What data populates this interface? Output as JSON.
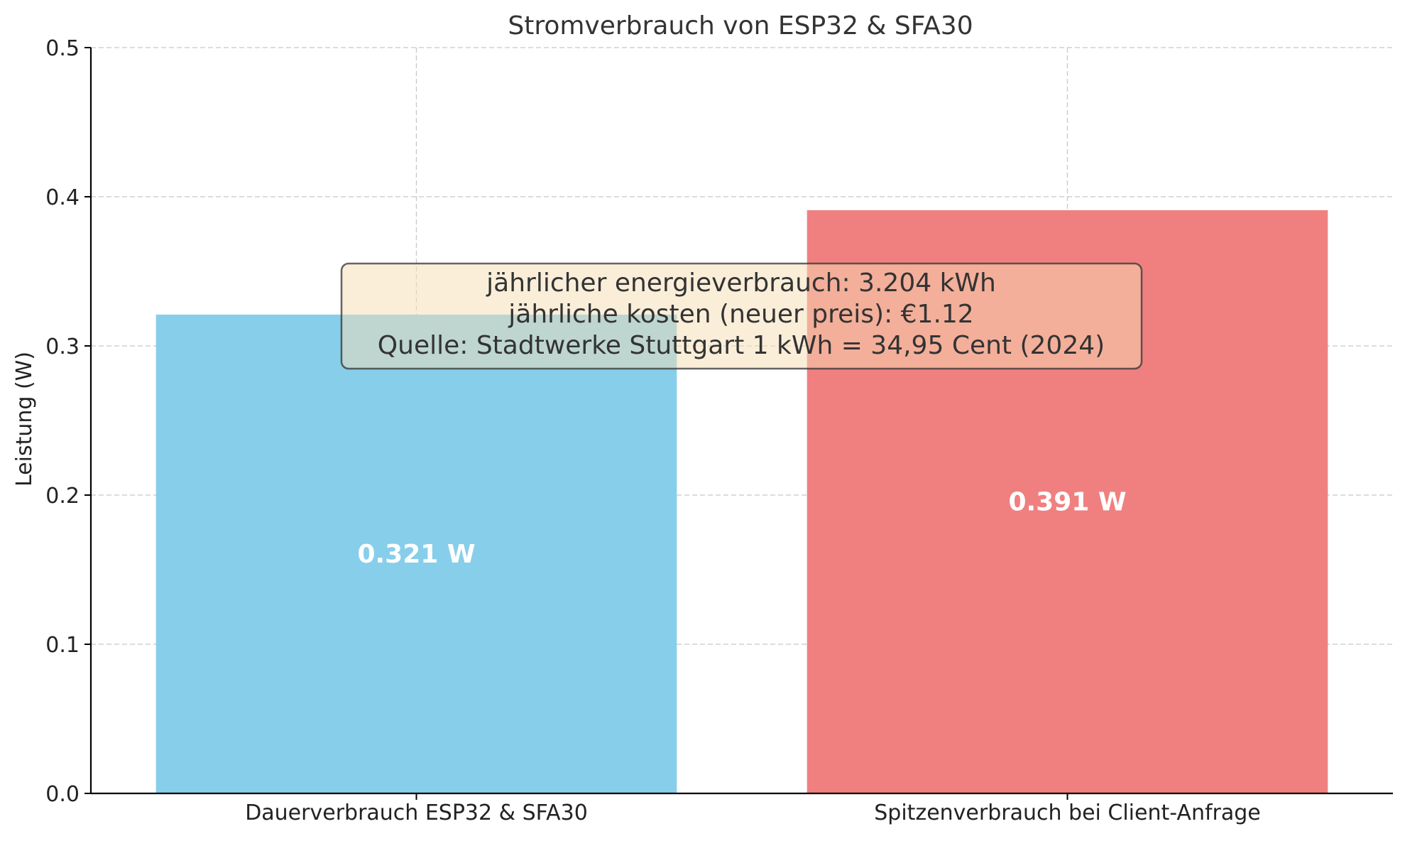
{
  "chart_data": {
    "type": "bar",
    "title": "Stromverbrauch von ESP32 & SFA30",
    "xlabel": "",
    "ylabel": "Leistung (W)",
    "ylim": [
      0,
      0.5
    ],
    "yticks": [
      0.0,
      0.1,
      0.2,
      0.3,
      0.4,
      0.5
    ],
    "ytick_labels": [
      "0.0",
      "0.1",
      "0.2",
      "0.3",
      "0.4",
      "0.5"
    ],
    "categories": [
      "Dauerverbrauch ESP32 & SFA30",
      "Spitzenverbrauch bei Client-Anfrage"
    ],
    "values": [
      0.321,
      0.391
    ],
    "value_labels": [
      "0.321 W",
      "0.391 W"
    ],
    "colors": [
      "#87CEEB",
      "#F08080"
    ],
    "grid": true,
    "annotation": {
      "lines": [
        "jährlicher energieverbrauch: 3.204 kWh",
        "jährliche kosten (neuer preis): €1.12",
        "Quelle: Stadtwerke Stuttgart 1 kWh = 34,95 Cent (2024)"
      ],
      "box_fill": "#F5DEB3",
      "box_edge": "#333333"
    }
  }
}
